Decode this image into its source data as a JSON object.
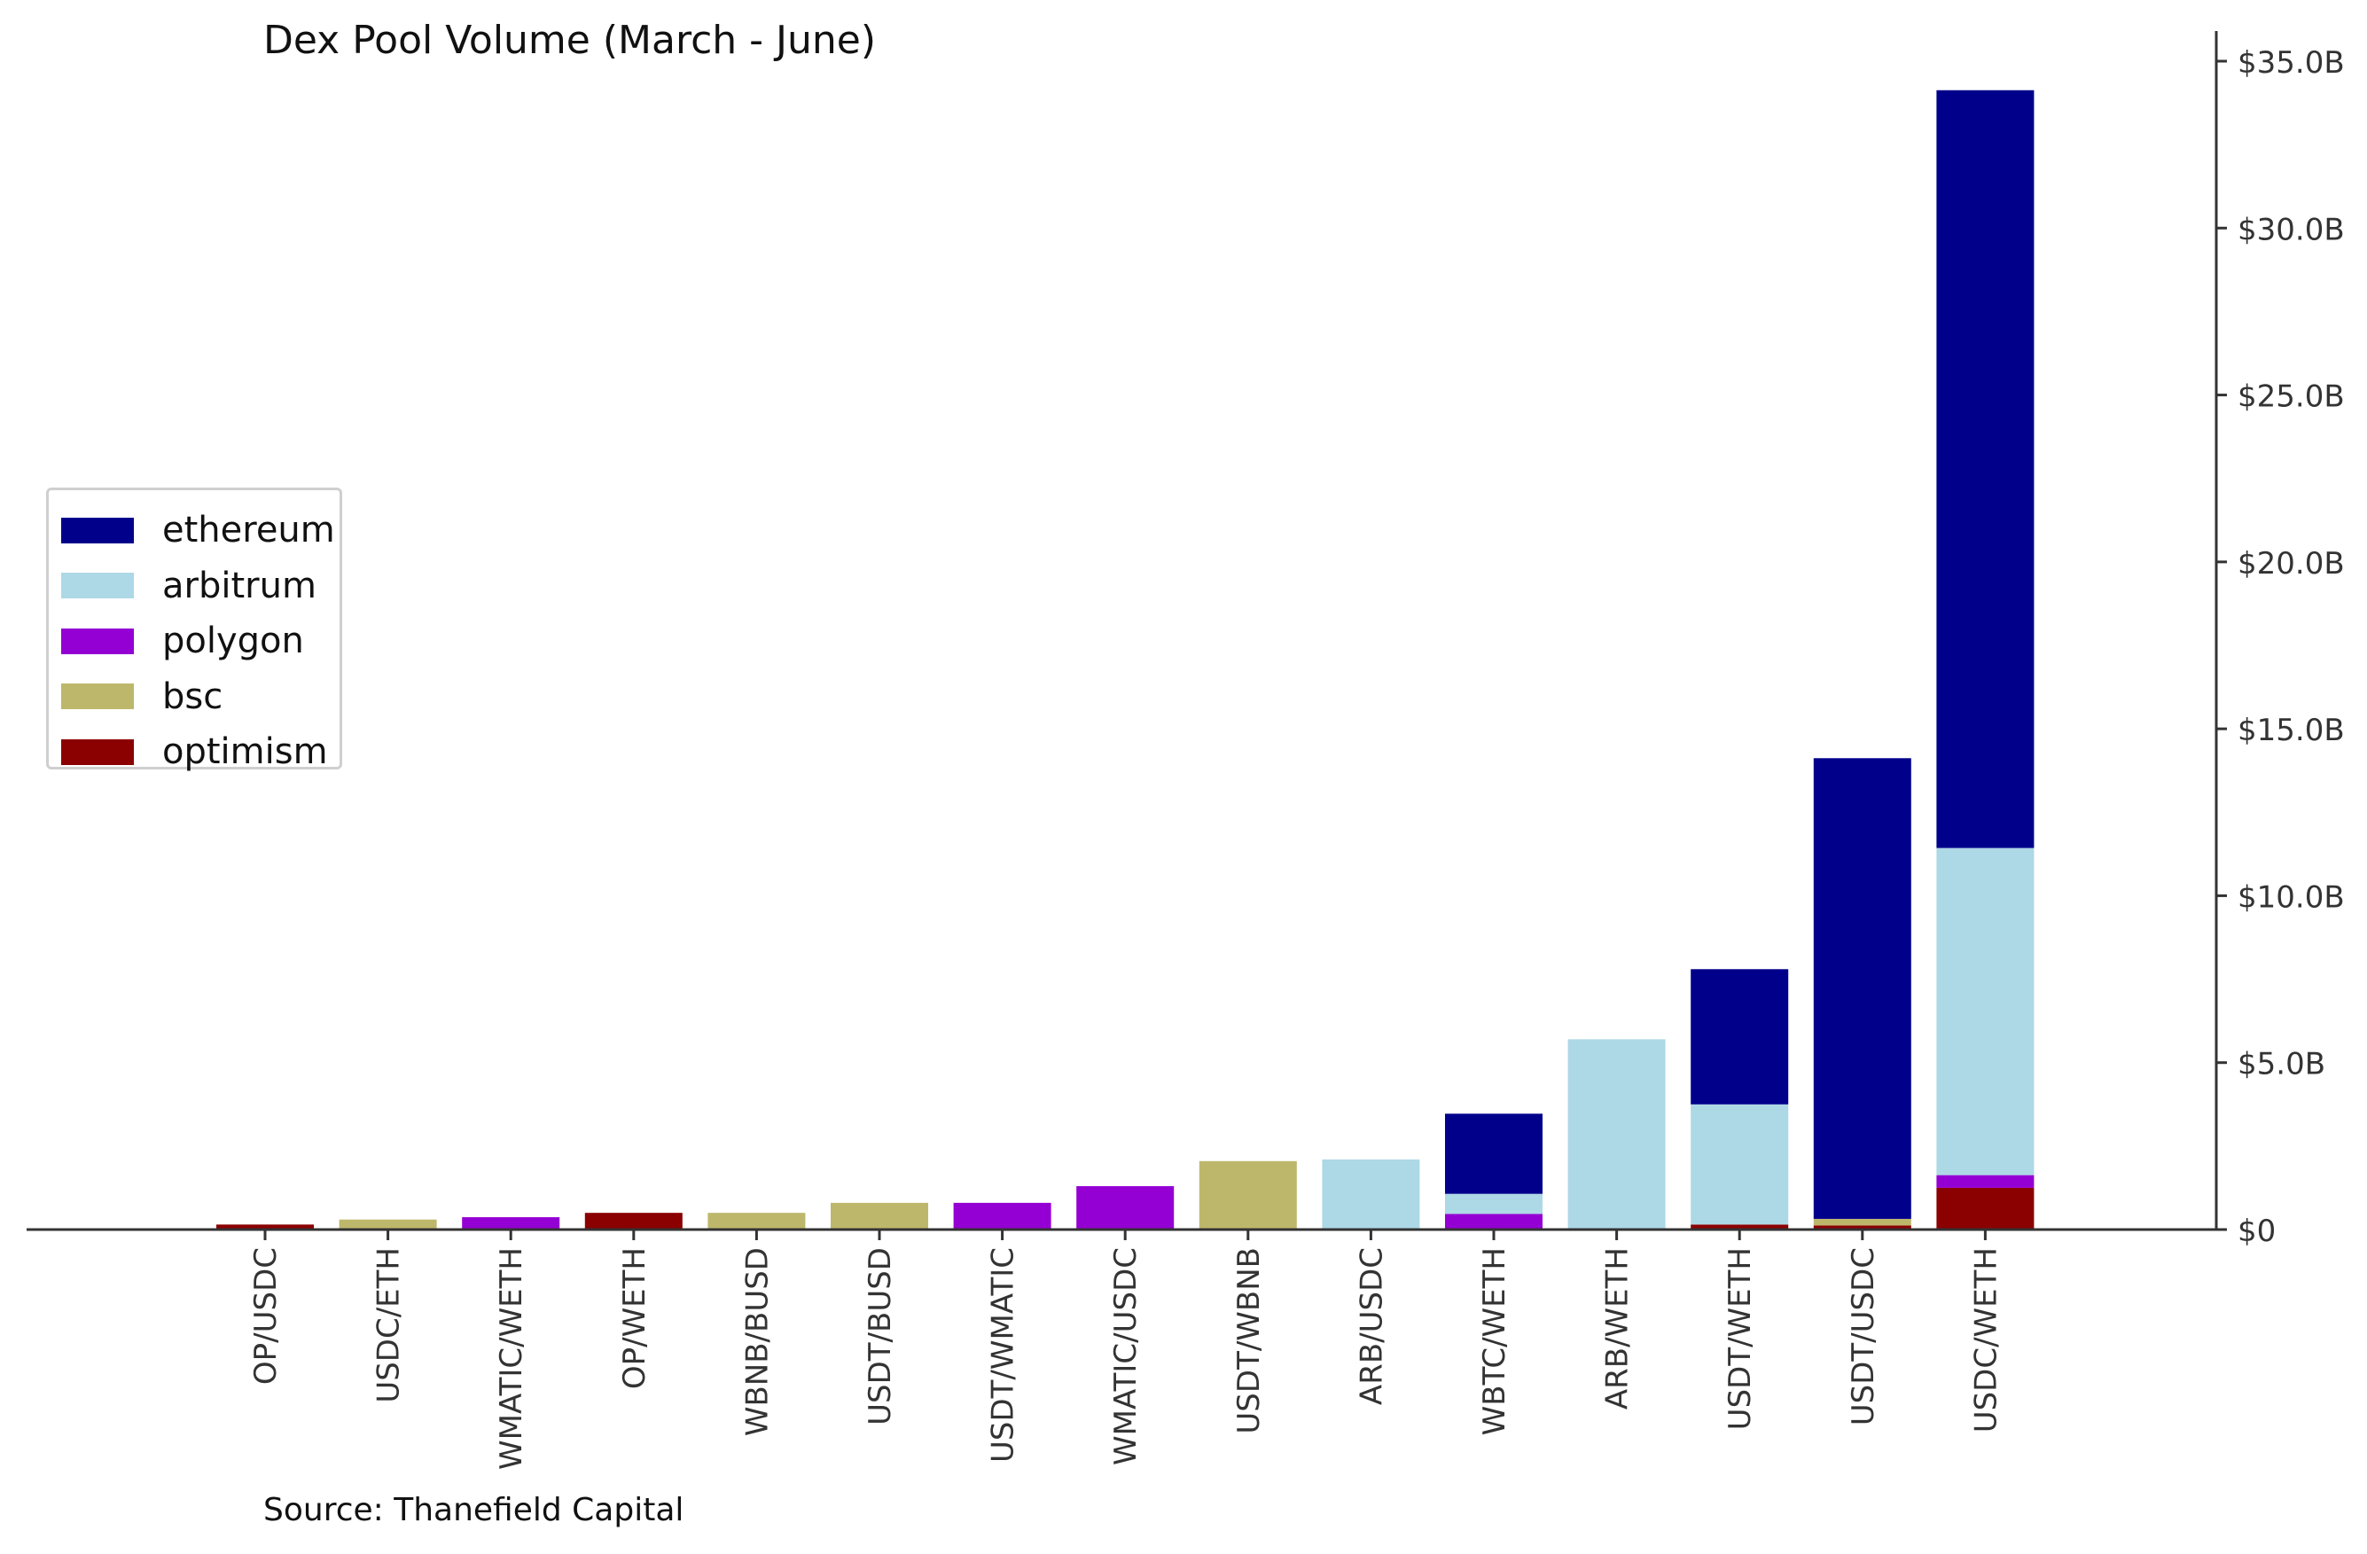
{
  "chart_data": {
    "type": "bar",
    "stacked": true,
    "title": "Dex Pool Volume (March - June)",
    "source": "Source: Thanefield Capital",
    "y_axis_position": "right",
    "legend_placement": "center-left",
    "grid": false,
    "ylim": [
      0,
      36.0
    ],
    "y_ticks": [
      {
        "value": 0,
        "label": "$0"
      },
      {
        "value": 5,
        "label": "$5.0B"
      },
      {
        "value": 10,
        "label": "$10.0B"
      },
      {
        "value": 15,
        "label": "$15.0B"
      },
      {
        "value": 20,
        "label": "$20.0B"
      },
      {
        "value": 25,
        "label": "$25.0B"
      },
      {
        "value": 30,
        "label": "$30.0B"
      },
      {
        "value": 35,
        "label": "$35.0B"
      }
    ],
    "categories": [
      "OP/USDC",
      "USDC/ETH",
      "WMATIC/WETH",
      "OP/WETH",
      "WBNB/BUSD",
      "USDT/BUSD",
      "USDT/WMATIC",
      "WMATIC/USDC",
      "USDT/WBNB",
      "ARB/USDC",
      "WBTC/WETH",
      "ARB/WETH",
      "USDT/WETH",
      "USDT/USDC",
      "USDC/WETH"
    ],
    "series": [
      {
        "name": "optimism",
        "color": "#8b0000",
        "values": [
          0.15,
          0,
          0,
          0.5,
          0,
          0,
          0,
          0,
          0,
          0,
          0,
          0,
          0.15,
          0.12,
          1.25
        ]
      },
      {
        "name": "bsc",
        "color": "#bdb76b",
        "values": [
          0,
          0.3,
          0,
          0,
          0.5,
          0.8,
          0,
          0,
          2.05,
          0,
          0,
          0,
          0,
          0.2,
          0
        ]
      },
      {
        "name": "polygon",
        "color": "#9400d3",
        "values": [
          0,
          0,
          0.37,
          0,
          0,
          0,
          0.8,
          1.3,
          0,
          0,
          0.47,
          0,
          0,
          0,
          0.38
        ]
      },
      {
        "name": "arbitrum",
        "color": "#add8e6",
        "values": [
          0,
          0,
          0,
          0,
          0,
          0,
          0,
          0,
          0,
          2.1,
          0.6,
          5.7,
          3.6,
          0,
          9.8
        ]
      },
      {
        "name": "ethereum",
        "color": "#00008b",
        "values": [
          0,
          0,
          0,
          0,
          0,
          0,
          0,
          0,
          0,
          0,
          2.4,
          0,
          4.05,
          13.8,
          22.7
        ]
      }
    ],
    "legend_order": [
      "ethereum",
      "arbitrum",
      "polygon",
      "bsc",
      "optimism"
    ]
  }
}
